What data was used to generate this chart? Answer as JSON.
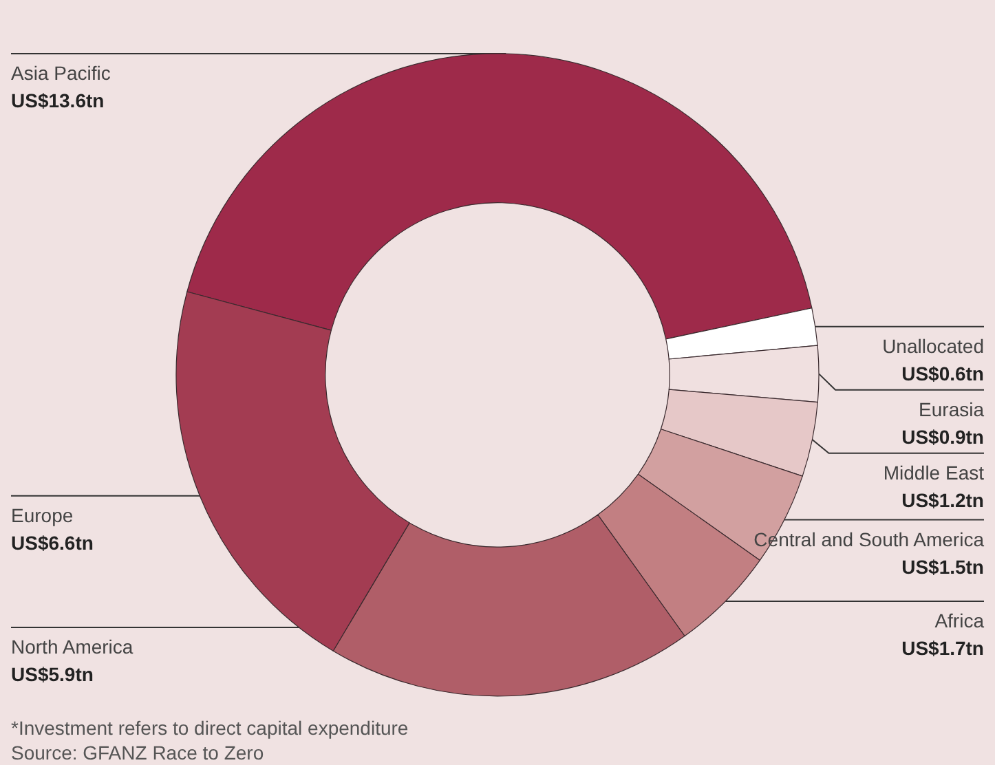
{
  "chart_data": {
    "type": "donut",
    "categories": [
      "Asia Pacific",
      "Unallocated",
      "Eurasia",
      "Middle East",
      "Central and South America",
      "Africa",
      "North America",
      "Europe"
    ],
    "values": [
      13.6,
      0.6,
      0.9,
      1.2,
      1.5,
      1.7,
      5.9,
      6.6
    ],
    "value_labels": [
      "US$13.6tn",
      "US$0.6tn",
      "US$0.9tn",
      "US$1.2tn",
      "US$1.5tn",
      "US$1.7tn",
      "US$5.9tn",
      "US$6.6tn"
    ],
    "colors": [
      "#9e2a4a",
      "#ffffff",
      "#f0e0e0",
      "#e6c8c8",
      "#d2a0a0",
      "#c27f82",
      "#b05e68",
      "#a33c52"
    ],
    "legend": false,
    "annotations": [
      "*Investment refers to direct capital expenditure",
      "Source: GFANZ Race to Zero"
    ]
  }
}
